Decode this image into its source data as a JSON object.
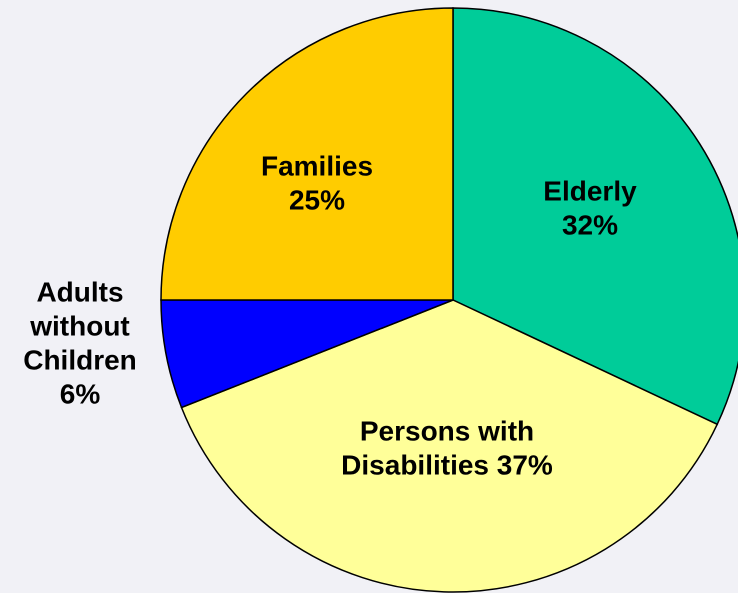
{
  "chart_data": {
    "type": "pie",
    "title": "",
    "slices": [
      {
        "name": "Elderly",
        "label_lines": [
          "Elderly",
          "32%"
        ],
        "value": 32,
        "color": "#00CC99"
      },
      {
        "name": "Persons with Disabilities",
        "label_lines": [
          "Persons with",
          "Disabilities 37%"
        ],
        "value": 37,
        "color": "#FFFF99"
      },
      {
        "name": "Adults without Children",
        "label_lines": [
          "Adults",
          "without",
          "Children",
          "6%"
        ],
        "value": 6,
        "color": "#0000FF"
      },
      {
        "name": "Families",
        "label_lines": [
          "Families",
          "25%"
        ],
        "value": 25,
        "color": "#FFCC00"
      }
    ],
    "legend": "none"
  }
}
